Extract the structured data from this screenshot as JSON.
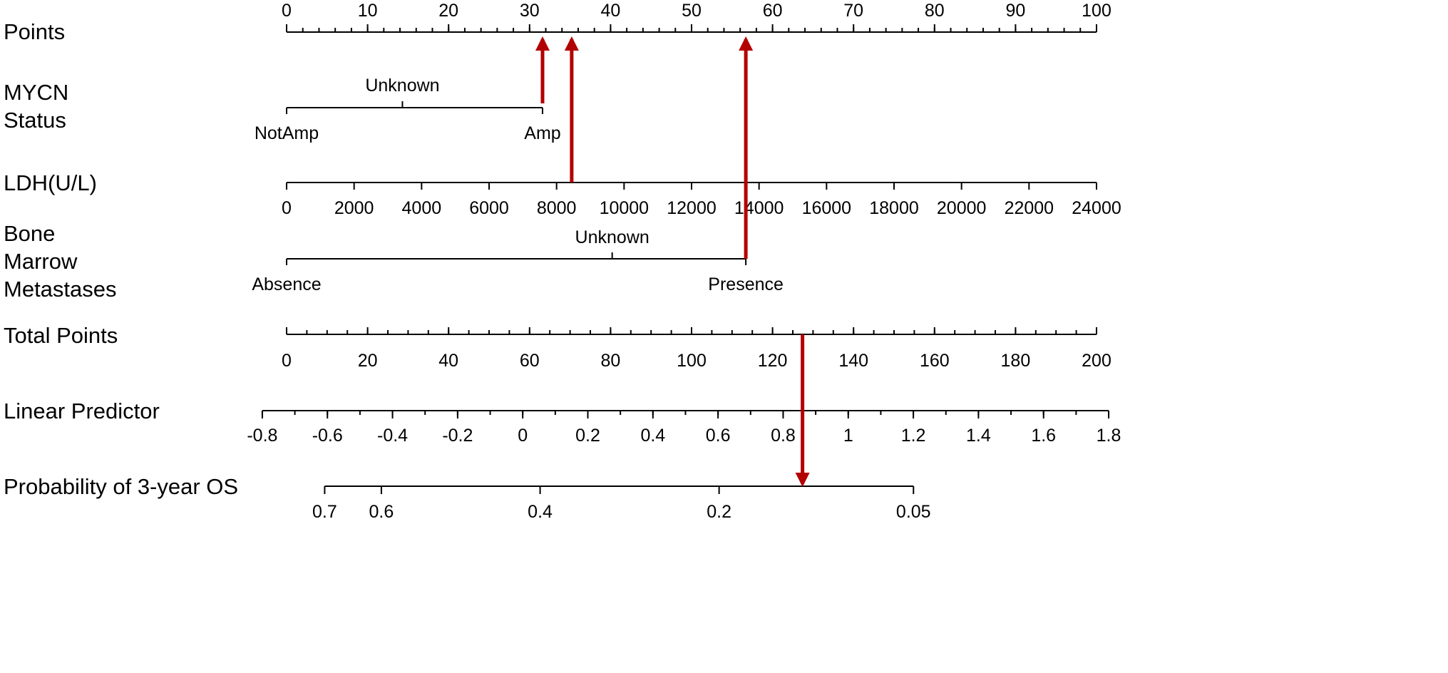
{
  "chart_data": {
    "type": "nomogram",
    "colors": {
      "axis": "#000000",
      "arrow": "#b30000"
    },
    "rows": [
      {
        "key": "points",
        "label": [
          "Points"
        ],
        "kind": "numeric",
        "ticks": [
          "0",
          "10",
          "20",
          "30",
          "40",
          "50",
          "60",
          "70",
          "80",
          "90",
          "100"
        ],
        "tick_values": [
          0,
          10,
          20,
          30,
          40,
          50,
          60,
          70,
          80,
          90,
          100
        ],
        "points_range": [
          0,
          100
        ],
        "minor_step": 2
      },
      {
        "key": "mycn",
        "label": [
          "MYCN",
          "Status"
        ],
        "kind": "categorical",
        "categories": [
          {
            "name": "NotAmp",
            "points": 0,
            "pos": "below"
          },
          {
            "name": "Unknown",
            "points": 14.3,
            "pos": "above"
          },
          {
            "name": "Amp",
            "points": 31.6,
            "pos": "below"
          }
        ]
      },
      {
        "key": "ldh",
        "label": [
          "LDH(U/L)"
        ],
        "kind": "numeric",
        "ticks": [
          "0",
          "2000",
          "4000",
          "6000",
          "8000",
          "10000",
          "12000",
          "14000",
          "16000",
          "18000",
          "20000",
          "22000",
          "24000"
        ],
        "tick_values": [
          0,
          2000,
          4000,
          6000,
          8000,
          10000,
          12000,
          14000,
          16000,
          18000,
          20000,
          22000,
          24000
        ],
        "points_range": [
          0,
          100
        ]
      },
      {
        "key": "bmm",
        "label": [
          "Bone",
          "Marrow",
          "Metastases"
        ],
        "kind": "categorical",
        "categories": [
          {
            "name": "Absence",
            "points": 0,
            "pos": "below"
          },
          {
            "name": "Unknown",
            "points": 40.2,
            "pos": "above"
          },
          {
            "name": "Presence",
            "points": 56.7,
            "pos": "below"
          }
        ]
      },
      {
        "key": "total",
        "label": [
          "Total Points"
        ],
        "kind": "numeric",
        "ticks": [
          "0",
          "20",
          "40",
          "60",
          "80",
          "100",
          "120",
          "140",
          "160",
          "180",
          "200"
        ],
        "tick_values": [
          0,
          20,
          40,
          60,
          80,
          100,
          120,
          140,
          160,
          180,
          200
        ],
        "points_range": [
          0,
          100
        ],
        "minor_step": 5
      },
      {
        "key": "lp",
        "label": [
          "Linear Predictor"
        ],
        "kind": "numeric",
        "ticks": [
          "-0.8",
          "-0.6",
          "-0.4",
          "-0.2",
          "0",
          "0.2",
          "0.4",
          "0.6",
          "0.8",
          "1",
          "1.2",
          "1.4",
          "1.6",
          "1.8"
        ],
        "tick_values": [
          -0.8,
          -0.6,
          -0.4,
          -0.2,
          0,
          0.2,
          0.4,
          0.6,
          0.8,
          1,
          1.2,
          1.4,
          1.6,
          1.8
        ],
        "points_range": [
          -3.0,
          101.5
        ],
        "minor_step": 0.1
      },
      {
        "key": "prob",
        "label": [
          "Probability of 3-year OS"
        ],
        "kind": "probability",
        "ticks": [
          "0.7",
          "0.6",
          "0.4",
          "0.2",
          "0.05"
        ],
        "tick_points": [
          4.7,
          11.7,
          31.3,
          53.4,
          77.4
        ],
        "line_range_points": [
          4.7,
          77.4
        ]
      }
    ],
    "arrows": [
      {
        "from_row": "mycn",
        "to_row": "points",
        "at_points": 31.6
      },
      {
        "from_row": "ldh",
        "to_row": "points",
        "at_points": 35.2
      },
      {
        "from_row": "bmm",
        "to_row": "points",
        "at_points": 56.7
      },
      {
        "from_row": "total",
        "to_row": "prob",
        "at_points": 63.7
      }
    ]
  }
}
